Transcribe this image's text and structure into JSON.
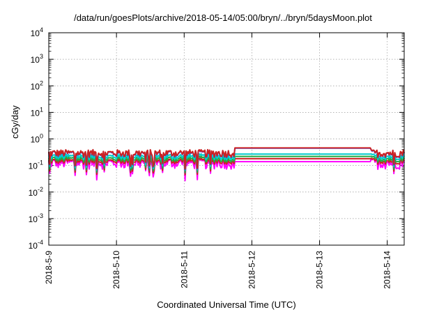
{
  "chart_data": {
    "type": "line",
    "title": "/data/run/goesPlots/archive/2018-05-14/05:00/bryn/../bryn/5daysMoon.plot",
    "xlabel": "Coordinated Universal Time (UTC)",
    "ylabel": "cGy/day",
    "yscale": "log",
    "ylim": [
      0.0001,
      10000
    ],
    "xlim": [
      "2018-05-09 00:00",
      "2018-05-14 06:00"
    ],
    "yticks": [
      {
        "base": "10",
        "exp": "4"
      },
      {
        "base": "10",
        "exp": "3"
      },
      {
        "base": "10",
        "exp": "2"
      },
      {
        "base": "10",
        "exp": "1"
      },
      {
        "base": "10",
        "exp": "0"
      },
      {
        "base": "10",
        "exp": "-1"
      },
      {
        "base": "10",
        "exp": "-2"
      },
      {
        "base": "10",
        "exp": "-3"
      },
      {
        "base": "10",
        "exp": "-4"
      }
    ],
    "xticks": [
      "2018-5-9",
      "2018-5-10",
      "2018-5-11",
      "2018-5-12",
      "2018-5-13",
      "2018-5-14"
    ],
    "grid": true,
    "legend": "none",
    "series": [
      {
        "color": "#ff00ff",
        "base": 0.13,
        "noise": 0.28,
        "plateau": 0.14
      },
      {
        "color": "#cc2222",
        "base": 0.15,
        "noise": 0.16,
        "plateau": 0.18
      },
      {
        "color": "#22aa44",
        "base": 0.18,
        "noise": 0.16,
        "plateau": 0.22
      },
      {
        "color": "#00cccc",
        "base": 0.22,
        "noise": 0.16,
        "plateau": 0.27
      },
      {
        "color": "#2244ff",
        "base": 0.29,
        "noise": 0.2,
        "plateau": 0.45
      },
      {
        "color": "#cc2222",
        "base": 0.3,
        "noise": 0.2,
        "plateau": 0.46
      }
    ],
    "gap": {
      "start": "2018-05-11 18:00",
      "end": "2018-05-13 18:00"
    }
  }
}
